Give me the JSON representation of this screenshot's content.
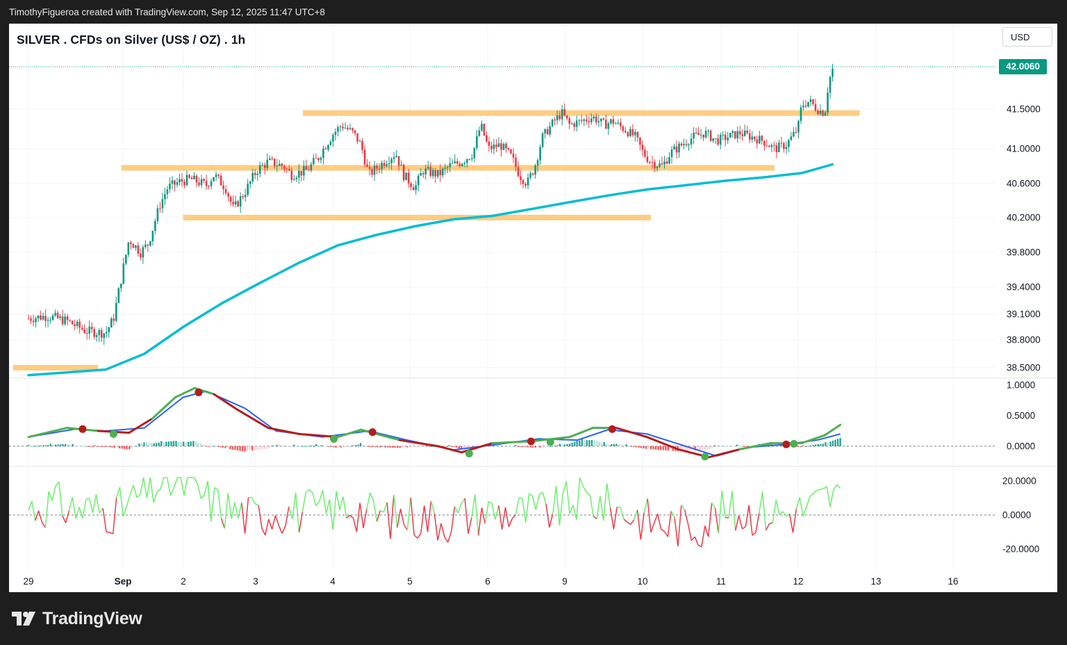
{
  "header": {
    "attribution": "TimothyFigueroa created with TradingView.com, Sep 12, 2025 11:47 UTC+8"
  },
  "footer": {
    "brand": "TradingView"
  },
  "chart_data": {
    "type": "candlestick",
    "title": "SILVER . CFDs on Silver (US$ / OZ) . 1h",
    "currency": "USD",
    "last_price": "42.0060",
    "colors": {
      "up": "#089981",
      "down": "#f23645",
      "ma": "#00bcd4",
      "zone": "#ffcc80",
      "macd_line": "#4caf50",
      "signal": "#2962ff",
      "macd_bear": "#b71c1c",
      "osc_up": "#69f06b",
      "osc_down": "#f23645"
    },
    "x_axis": {
      "labels": [
        "29",
        "Sep",
        "2",
        "3",
        "4",
        "5",
        "6",
        "9",
        "10",
        "11",
        "12",
        "13",
        "16"
      ],
      "label_positions": [
        0,
        1,
        2,
        3,
        4,
        5,
        6,
        7,
        8,
        9,
        10,
        11,
        12
      ]
    },
    "price_axis": {
      "ticks": [
        "41.5000",
        "41.0000",
        "40.6000",
        "40.2000",
        "39.8000",
        "39.4000",
        "39.1000",
        "38.8000",
        "38.5000"
      ],
      "tick_values": [
        41.5,
        41.0,
        40.6,
        40.2,
        39.8,
        39.4,
        39.1,
        38.8,
        38.5
      ]
    },
    "price_path": [
      [
        0,
        39.05
      ],
      [
        0.25,
        39.08
      ],
      [
        0.5,
        39.02
      ],
      [
        0.75,
        38.9
      ],
      [
        1.0,
        38.88
      ],
      [
        1.1,
        39.05
      ],
      [
        1.2,
        39.5
      ],
      [
        1.3,
        39.95
      ],
      [
        1.45,
        39.8
      ],
      [
        1.55,
        39.9
      ],
      [
        1.7,
        40.35
      ],
      [
        1.8,
        40.55
      ],
      [
        1.95,
        40.62
      ],
      [
        2.1,
        40.65
      ],
      [
        2.3,
        40.58
      ],
      [
        2.4,
        40.7
      ],
      [
        2.55,
        40.55
      ],
      [
        2.65,
        40.3
      ],
      [
        2.8,
        40.5
      ],
      [
        2.95,
        40.75
      ],
      [
        3.1,
        40.85
      ],
      [
        3.3,
        40.8
      ],
      [
        3.4,
        40.7
      ],
      [
        3.6,
        40.75
      ],
      [
        3.75,
        40.9
      ],
      [
        3.95,
        41.2
      ],
      [
        4.05,
        41.3
      ],
      [
        4.2,
        41.2
      ],
      [
        4.3,
        41.05
      ],
      [
        4.4,
        40.7
      ],
      [
        4.6,
        40.85
      ],
      [
        4.75,
        40.95
      ],
      [
        4.85,
        40.7
      ],
      [
        5.0,
        40.55
      ],
      [
        5.1,
        40.75
      ],
      [
        5.3,
        40.7
      ],
      [
        5.45,
        40.8
      ],
      [
        5.6,
        40.85
      ],
      [
        5.75,
        40.95
      ],
      [
        5.85,
        41.3
      ],
      [
        5.95,
        41.0
      ],
      [
        6.1,
        41.05
      ],
      [
        6.25,
        40.9
      ],
      [
        6.35,
        40.7
      ],
      [
        6.45,
        40.6
      ],
      [
        6.55,
        40.8
      ],
      [
        6.65,
        41.15
      ],
      [
        6.8,
        41.35
      ],
      [
        6.9,
        41.45
      ],
      [
        7.0,
        41.3
      ],
      [
        7.15,
        41.35
      ],
      [
        7.3,
        41.4
      ],
      [
        7.45,
        41.3
      ],
      [
        7.55,
        41.35
      ],
      [
        7.7,
        41.25
      ],
      [
        7.85,
        41.15
      ],
      [
        7.95,
        40.95
      ],
      [
        8.05,
        40.85
      ],
      [
        8.2,
        40.8
      ],
      [
        8.3,
        40.95
      ],
      [
        8.45,
        41.05
      ],
      [
        8.6,
        41.15
      ],
      [
        8.75,
        41.2
      ],
      [
        8.9,
        41.1
      ],
      [
        9.05,
        41.15
      ],
      [
        9.2,
        41.2
      ],
      [
        9.35,
        41.15
      ],
      [
        9.5,
        41.1
      ],
      [
        9.65,
        41.0
      ],
      [
        9.8,
        41.05
      ],
      [
        9.95,
        41.25
      ],
      [
        10.0,
        41.55
      ],
      [
        10.1,
        41.6
      ],
      [
        10.2,
        41.5
      ],
      [
        10.3,
        41.45
      ],
      [
        10.35,
        41.85
      ],
      [
        10.4,
        42.0
      ]
    ],
    "moving_average": {
      "points": [
        [
          0,
          38.42
        ],
        [
          1,
          38.48
        ],
        [
          1.5,
          38.65
        ],
        [
          2,
          38.95
        ],
        [
          2.5,
          39.22
        ],
        [
          3,
          39.45
        ],
        [
          3.5,
          39.68
        ],
        [
          4,
          39.88
        ],
        [
          4.5,
          40.0
        ],
        [
          5,
          40.1
        ],
        [
          5.5,
          40.18
        ],
        [
          6,
          40.22
        ],
        [
          6.5,
          40.3
        ],
        [
          7,
          40.38
        ],
        [
          7.5,
          40.46
        ],
        [
          8,
          40.53
        ],
        [
          8.5,
          40.58
        ],
        [
          9,
          40.63
        ],
        [
          9.5,
          40.67
        ],
        [
          10,
          40.72
        ],
        [
          10.4,
          40.82
        ]
      ]
    },
    "support_resistance_zones": [
      {
        "x_from": 3.55,
        "x_to": 10.75,
        "price": 41.45
      },
      {
        "x_from": 1.2,
        "x_to": 9.65,
        "price": 40.78
      },
      {
        "x_from": 2.0,
        "x_to": 8.05,
        "price": 40.2
      },
      {
        "x_from": -0.2,
        "x_to": 0.9,
        "price": 38.5
      }
    ],
    "indicator_macd": {
      "axis_ticks": [
        "1.0000",
        "0.5000",
        "0.0000"
      ],
      "tick_values": [
        1.0,
        0.5,
        0.0
      ],
      "macd": [
        [
          0,
          0.15
        ],
        [
          0.5,
          0.3
        ],
        [
          0.9,
          0.25
        ],
        [
          1.3,
          0.22
        ],
        [
          1.6,
          0.45
        ],
        [
          1.9,
          0.8
        ],
        [
          2.15,
          0.95
        ],
        [
          2.4,
          0.85
        ],
        [
          2.7,
          0.6
        ],
        [
          3.1,
          0.3
        ],
        [
          3.5,
          0.2
        ],
        [
          4.0,
          0.15
        ],
        [
          4.3,
          0.27
        ],
        [
          4.8,
          0.1
        ],
        [
          5.3,
          0.0
        ],
        [
          5.6,
          -0.1
        ],
        [
          6.0,
          0.05
        ],
        [
          6.5,
          0.08
        ],
        [
          7.0,
          0.15
        ],
        [
          7.3,
          0.3
        ],
        [
          7.6,
          0.3
        ],
        [
          8.0,
          0.15
        ],
        [
          8.4,
          -0.05
        ],
        [
          8.8,
          -0.18
        ],
        [
          9.2,
          -0.05
        ],
        [
          9.6,
          0.05
        ],
        [
          10.0,
          0.05
        ],
        [
          10.3,
          0.18
        ],
        [
          10.5,
          0.35
        ]
      ],
      "signal": [
        [
          0,
          0.15
        ],
        [
          0.6,
          0.28
        ],
        [
          1.0,
          0.25
        ],
        [
          1.5,
          0.3
        ],
        [
          2.0,
          0.8
        ],
        [
          2.3,
          0.9
        ],
        [
          2.8,
          0.62
        ],
        [
          3.2,
          0.25
        ],
        [
          3.8,
          0.15
        ],
        [
          4.4,
          0.25
        ],
        [
          4.9,
          0.1
        ],
        [
          5.5,
          -0.06
        ],
        [
          6.0,
          0.02
        ],
        [
          6.6,
          0.12
        ],
        [
          7.1,
          0.1
        ],
        [
          7.5,
          0.27
        ],
        [
          8.0,
          0.2
        ],
        [
          8.5,
          0.0
        ],
        [
          8.9,
          -0.16
        ],
        [
          9.3,
          -0.02
        ],
        [
          9.8,
          0.03
        ],
        [
          10.2,
          0.1
        ],
        [
          10.5,
          0.2
        ]
      ],
      "crosses": [
        {
          "x": 0.7,
          "v": 0.28,
          "kind": "bear"
        },
        {
          "x": 1.1,
          "v": 0.2,
          "kind": "bull"
        },
        {
          "x": 2.2,
          "v": 0.88,
          "kind": "bear"
        },
        {
          "x": 3.95,
          "v": 0.12,
          "kind": "bull"
        },
        {
          "x": 4.45,
          "v": 0.23,
          "kind": "bear"
        },
        {
          "x": 5.7,
          "v": -0.12,
          "kind": "bull"
        },
        {
          "x": 6.5,
          "v": 0.08,
          "kind": "bear"
        },
        {
          "x": 6.75,
          "v": 0.07,
          "kind": "bull"
        },
        {
          "x": 7.55,
          "v": 0.28,
          "kind": "bear"
        },
        {
          "x": 8.75,
          "v": -0.17,
          "kind": "bull"
        },
        {
          "x": 9.8,
          "v": 0.03,
          "kind": "bear"
        },
        {
          "x": 9.9,
          "v": 0.04,
          "kind": "bull"
        }
      ]
    },
    "indicator_oscillator": {
      "axis_ticks": [
        "20.0000",
        "0.0000",
        "-20.0000"
      ],
      "tick_values": [
        20,
        0,
        -20
      ]
    }
  }
}
